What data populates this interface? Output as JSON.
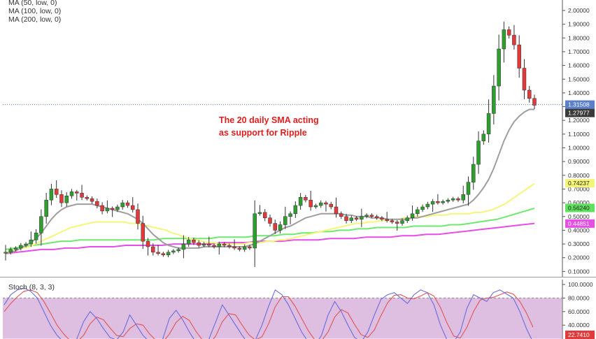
{
  "legend": {
    "ma50": "MA (50, low, 0)",
    "ma100": "MA (100, low, 0)",
    "ma200": "MA (200, low, 0)"
  },
  "annotation": {
    "line1": "The 20 daily SMA acting",
    "line2": "as support for Ripple"
  },
  "stoch_label": "Stoch (8, 3, 3)",
  "colors": {
    "up": "#2e9e2e",
    "down": "#e23a3a",
    "sma20": "#9e9e9e",
    "ma50": "#f5f57a",
    "ma100": "#6fe86f",
    "ma200": "#e64fe6",
    "stoch_k": "#6b6bdb",
    "stoch_d": "#e05555",
    "stoch_band": "#d8b4dc",
    "price_line": "#5b7fc9",
    "annotation": "#e11d1d"
  },
  "chart_data": {
    "type": "candlestick",
    "price_axis": {
      "range": [
        0.0,
        2.05
      ],
      "ticks": [
        "2.00000",
        "1.90000",
        "1.80000",
        "1.70000",
        "1.60000",
        "1.50000",
        "1.40000",
        "1.30000",
        "1.20000",
        "1.10000",
        "1.00000",
        "0.90000",
        "0.80000",
        "0.70000",
        "0.60000",
        "0.50000",
        "0.40000",
        "0.30000",
        "0.20000",
        "0.10000"
      ]
    },
    "price_tags": [
      {
        "value": "1.31508",
        "price": 1.315,
        "bg": "#5b7fc9",
        "fg": "#ffffff"
      },
      {
        "value": "1.27977",
        "price": 1.2798,
        "bg": "#3a3a3a",
        "fg": "#ffffff"
      },
      {
        "value": "0.74237",
        "price": 0.7424,
        "bg": "#f5f57a",
        "fg": "#222222"
      },
      {
        "value": "0.56240",
        "price": 0.5624,
        "bg": "#5fe05f",
        "fg": "#222222"
      },
      {
        "value": "0.44851",
        "price": 0.4485,
        "bg": "#e64fe6",
        "fg": "#ffffff"
      }
    ],
    "current_price": 1.315,
    "stoch_axis": {
      "range": [
        0,
        100
      ],
      "ticks": [
        "100.0000",
        "80.0000",
        "60.0000",
        "40.0000"
      ],
      "band": [
        20,
        80
      ]
    },
    "stoch_tag": {
      "value": "22.7410",
      "level": 22.741,
      "bg": "#e23a3a",
      "fg": "#ffffff"
    },
    "close_series": [
      0.24,
      0.26,
      0.27,
      0.29,
      0.3,
      0.33,
      0.38,
      0.5,
      0.62,
      0.7,
      0.66,
      0.6,
      0.65,
      0.68,
      0.67,
      0.64,
      0.63,
      0.61,
      0.58,
      0.54,
      0.56,
      0.55,
      0.57,
      0.6,
      0.58,
      0.55,
      0.45,
      0.32,
      0.28,
      0.24,
      0.23,
      0.22,
      0.24,
      0.25,
      0.26,
      0.3,
      0.33,
      0.31,
      0.29,
      0.3,
      0.29,
      0.28,
      0.3,
      0.29,
      0.28,
      0.27,
      0.26,
      0.28,
      0.27,
      0.52,
      0.53,
      0.49,
      0.45,
      0.4,
      0.44,
      0.5,
      0.52,
      0.58,
      0.64,
      0.62,
      0.57,
      0.58,
      0.6,
      0.59,
      0.57,
      0.52,
      0.5,
      0.47,
      0.49,
      0.48,
      0.5,
      0.51,
      0.5,
      0.49,
      0.48,
      0.47,
      0.46,
      0.45,
      0.47,
      0.49,
      0.52,
      0.55,
      0.57,
      0.59,
      0.61,
      0.6,
      0.61,
      0.62,
      0.63,
      0.62,
      0.66,
      0.75,
      0.88,
      1.05,
      1.1,
      1.25,
      1.45,
      1.72,
      1.86,
      1.82,
      1.75,
      1.58,
      1.42,
      1.36,
      1.31
    ],
    "sma20_series": [
      0.23,
      0.24,
      0.25,
      0.27,
      0.29,
      0.31,
      0.34,
      0.38,
      0.43,
      0.48,
      0.52,
      0.55,
      0.57,
      0.58,
      0.59,
      0.59,
      0.59,
      0.59,
      0.58,
      0.57,
      0.56,
      0.55,
      0.54,
      0.53,
      0.52,
      0.5,
      0.48,
      0.45,
      0.41,
      0.37,
      0.34,
      0.31,
      0.29,
      0.28,
      0.27,
      0.27,
      0.27,
      0.27,
      0.27,
      0.28,
      0.28,
      0.28,
      0.28,
      0.28,
      0.28,
      0.28,
      0.28,
      0.28,
      0.29,
      0.3,
      0.32,
      0.34,
      0.36,
      0.38,
      0.4,
      0.42,
      0.43,
      0.45,
      0.47,
      0.49,
      0.5,
      0.51,
      0.52,
      0.52,
      0.52,
      0.52,
      0.52,
      0.51,
      0.51,
      0.5,
      0.5,
      0.5,
      0.49,
      0.49,
      0.49,
      0.48,
      0.48,
      0.48,
      0.48,
      0.48,
      0.49,
      0.49,
      0.5,
      0.51,
      0.52,
      0.53,
      0.54,
      0.55,
      0.56,
      0.57,
      0.58,
      0.59,
      0.62,
      0.66,
      0.71,
      0.77,
      0.85,
      0.95,
      1.05,
      1.13,
      1.19,
      1.23,
      1.26,
      1.28,
      1.28
    ],
    "ma50_series": [
      0.24,
      0.25,
      0.26,
      0.27,
      0.28,
      0.3,
      0.32,
      0.34,
      0.36,
      0.38,
      0.4,
      0.42,
      0.43,
      0.44,
      0.45,
      0.46,
      0.46,
      0.46,
      0.46,
      0.46,
      0.46,
      0.45,
      0.45,
      0.44,
      0.43,
      0.42,
      0.41,
      0.4,
      0.38,
      0.37,
      0.35,
      0.34,
      0.33,
      0.32,
      0.31,
      0.31,
      0.3,
      0.3,
      0.3,
      0.3,
      0.3,
      0.31,
      0.31,
      0.31,
      0.32,
      0.32,
      0.33,
      0.33,
      0.34,
      0.35,
      0.36,
      0.37,
      0.38,
      0.39,
      0.4,
      0.41,
      0.42,
      0.43,
      0.44,
      0.45,
      0.45,
      0.46,
      0.46,
      0.47,
      0.47,
      0.48,
      0.48,
      0.49,
      0.49,
      0.5,
      0.5,
      0.5,
      0.51,
      0.51,
      0.51,
      0.52,
      0.52,
      0.52,
      0.52,
      0.53,
      0.53,
      0.54,
      0.55,
      0.57,
      0.59,
      0.62,
      0.65,
      0.68,
      0.71,
      0.74
    ],
    "ma100_series": [
      0.26,
      0.27,
      0.28,
      0.29,
      0.3,
      0.31,
      0.32,
      0.32,
      0.33,
      0.33,
      0.33,
      0.33,
      0.33,
      0.33,
      0.33,
      0.33,
      0.33,
      0.34,
      0.34,
      0.34,
      0.34,
      0.34,
      0.34,
      0.35,
      0.35,
      0.35,
      0.35,
      0.36,
      0.36,
      0.36,
      0.37,
      0.37,
      0.38,
      0.38,
      0.39,
      0.39,
      0.4,
      0.4,
      0.41,
      0.41,
      0.42,
      0.42,
      0.42,
      0.42,
      0.43,
      0.43,
      0.43,
      0.43,
      0.44,
      0.44,
      0.45,
      0.46,
      0.47,
      0.48,
      0.5,
      0.52,
      0.54,
      0.56
    ],
    "ma200_series": [
      0.23,
      0.24,
      0.25,
      0.26,
      0.26,
      0.27,
      0.27,
      0.28,
      0.28,
      0.28,
      0.29,
      0.29,
      0.29,
      0.29,
      0.3,
      0.3,
      0.3,
      0.3,
      0.31,
      0.31,
      0.31,
      0.32,
      0.32,
      0.32,
      0.33,
      0.33,
      0.33,
      0.34,
      0.34,
      0.34,
      0.35,
      0.35,
      0.35,
      0.36,
      0.36,
      0.37,
      0.37,
      0.38,
      0.39,
      0.4,
      0.41,
      0.42,
      0.43,
      0.44,
      0.45
    ],
    "stoch_k": [
      70,
      85,
      92,
      95,
      90,
      80,
      60,
      40,
      25,
      15,
      10,
      20,
      45,
      60,
      50,
      35,
      22,
      18,
      30,
      55,
      40,
      25,
      15,
      10,
      20,
      50,
      62,
      48,
      30,
      15,
      8,
      20,
      45,
      70,
      55,
      40,
      25,
      12,
      18,
      40,
      68,
      92,
      85,
      70,
      50,
      30,
      15,
      10,
      25,
      55,
      75,
      60,
      40,
      22,
      15,
      30,
      55,
      78,
      85,
      88,
      80,
      72,
      85,
      92,
      88,
      70,
      40,
      18,
      15,
      30,
      65,
      85,
      80,
      75,
      88,
      92,
      86,
      80,
      60,
      35,
      15
    ],
    "stoch_d": [
      60,
      72,
      82,
      90,
      92,
      88,
      75,
      58,
      40,
      27,
      17,
      15,
      25,
      42,
      52,
      48,
      36,
      25,
      23,
      35,
      42,
      40,
      27,
      17,
      15,
      27,
      44,
      53,
      47,
      31,
      18,
      12,
      24,
      45,
      57,
      55,
      40,
      26,
      18,
      23,
      42,
      67,
      82,
      82,
      68,
      50,
      32,
      18,
      17,
      30,
      52,
      63,
      58,
      41,
      26,
      22,
      33,
      54,
      73,
      84,
      85,
      80,
      79,
      83,
      88,
      83,
      66,
      43,
      24,
      21,
      37,
      60,
      77,
      80,
      81,
      85,
      89,
      86,
      75,
      58,
      37
    ]
  }
}
